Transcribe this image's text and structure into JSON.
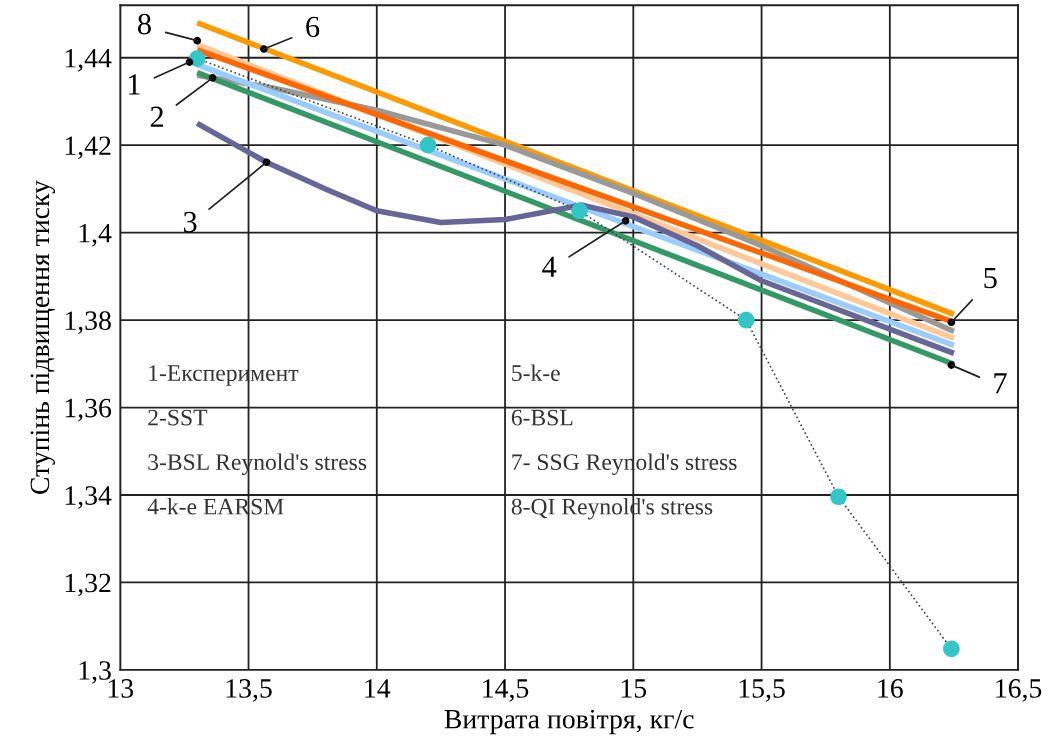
{
  "chart_data": {
    "type": "line",
    "xlabel": "Витрата повітря, кг/с",
    "ylabel": "Ступінь підвищення тиску",
    "xlim": [
      13,
      16.5
    ],
    "xticks": [
      {
        "value": 13,
        "label": "13"
      },
      {
        "value": 13.5,
        "label": "13,5"
      },
      {
        "value": 14,
        "label": "14"
      },
      {
        "value": 14.5,
        "label": "14,5"
      },
      {
        "value": 15,
        "label": "15"
      },
      {
        "value": 15.5,
        "label": "15,5"
      },
      {
        "value": 16,
        "label": "16"
      },
      {
        "value": 16.5,
        "label": "16,5"
      }
    ],
    "ylim": [
      1.3,
      1.452
    ],
    "yticks": [
      {
        "value": 1.3,
        "label": "1,3"
      },
      {
        "value": 1.32,
        "label": "1,32"
      },
      {
        "value": 1.34,
        "label": "1,34"
      },
      {
        "value": 1.36,
        "label": "1,36"
      },
      {
        "value": 1.38,
        "label": "1,38"
      },
      {
        "value": 1.4,
        "label": "1,4"
      },
      {
        "value": 1.42,
        "label": "1,42"
      },
      {
        "value": 1.44,
        "label": "1,44"
      }
    ],
    "grid": true,
    "series": [
      {
        "color": "#ff9900",
        "x": [
          13.3,
          16.25
        ],
        "values": [
          1.448,
          1.3813
        ]
      },
      {
        "color": "#ffc896",
        "x": [
          13.3,
          16.25
        ],
        "values": [
          1.443,
          1.3758
        ]
      },
      {
        "color": "#999999",
        "x": [
          13.3,
          13.6,
          14.0,
          14.5,
          15.0,
          15.5,
          16.25
        ],
        "values": [
          1.436,
          1.433,
          1.428,
          1.42,
          1.409,
          1.397,
          1.3774
        ]
      },
      {
        "color": "#99ccff",
        "x": [
          13.3,
          16.25
        ],
        "values": [
          1.4384,
          1.3742
        ]
      },
      {
        "color": "#339966",
        "x": [
          13.3,
          16.25
        ],
        "values": [
          1.4366,
          1.3699
        ]
      },
      {
        "color": "#666699",
        "x": [
          13.3,
          13.57,
          13.8,
          14.0,
          14.25,
          14.5,
          14.8,
          15.0,
          15.25,
          15.5,
          16.25
        ],
        "values": [
          1.425,
          1.4161,
          1.41,
          1.405,
          1.4023,
          1.403,
          1.4063,
          1.4036,
          1.397,
          1.389,
          1.3724
        ]
      },
      {
        "color": "#ff6600",
        "x": [
          13.3,
          16.25
        ],
        "values": [
          1.4418,
          1.3795
        ]
      },
      {
        "color": "#33c6c6",
        "marker": "circle",
        "line_style": "dotted",
        "x": [
          13.3,
          14.2,
          14.79,
          15.44,
          15.8,
          16.24
        ],
        "values": [
          1.4398,
          1.42,
          1.405,
          1.38,
          1.3396,
          1.3048
        ]
      }
    ],
    "annotations": [
      "1-Експеримент",
      "2-SST",
      "3-BSL Reynold's stress",
      "4-k-e EARSM",
      "5-k-e",
      "6-BSL",
      "7- SSG Reynold's stress",
      "8-QI Reynold's stress",
      {
        "text": "8",
        "x": 13.3,
        "y": 1.4439
      },
      {
        "text": "6",
        "x": 13.56,
        "y": 1.442
      },
      {
        "text": "1",
        "x": 13.27,
        "y": 1.439
      },
      {
        "text": "2",
        "x": 13.36,
        "y": 1.4354
      },
      {
        "text": "3",
        "x": 13.57,
        "y": 1.4161
      },
      {
        "text": "4",
        "x": 14.97,
        "y": 1.4027
      },
      {
        "text": "5",
        "x": 16.24,
        "y": 1.3795
      },
      {
        "text": "7",
        "x": 16.24,
        "y": 1.3697
      }
    ]
  }
}
